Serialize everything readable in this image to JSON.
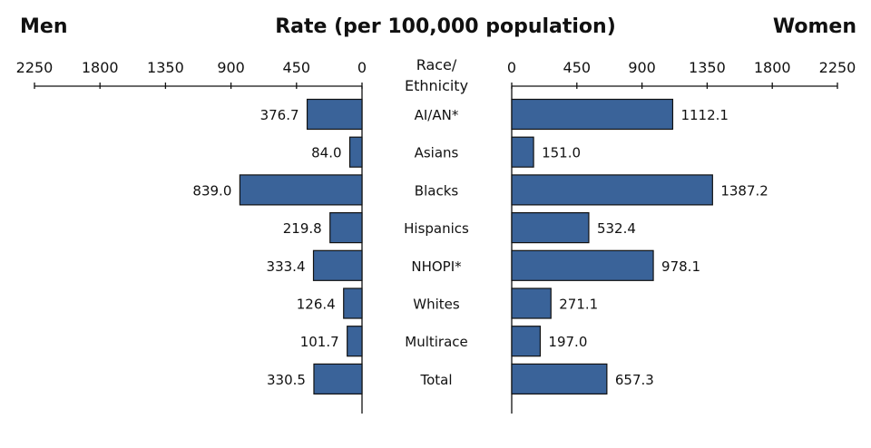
{
  "chart_data": {
    "type": "bar",
    "orientation": "horizontal-butterfly",
    "title": "Rate (per 100,000 population)",
    "left_label": "Men",
    "right_label": "Women",
    "category_header": [
      "Race/",
      "Ethnicity"
    ],
    "categories": [
      "AI/AN*",
      "Asians",
      "Blacks",
      "Hispanics",
      "NHOPI*",
      "Whites",
      "Multirace",
      "Total"
    ],
    "series": [
      {
        "name": "Men",
        "values": [
          376.7,
          84.0,
          839.0,
          219.8,
          333.4,
          126.4,
          101.7,
          330.5
        ]
      },
      {
        "name": "Women",
        "values": [
          1112.1,
          151.0,
          1387.2,
          532.4,
          978.1,
          271.1,
          197.0,
          657.3
        ]
      }
    ],
    "xlim": [
      0,
      2250
    ],
    "ticks": [
      0,
      450,
      900,
      1350,
      1800,
      2250
    ],
    "grid": false,
    "bar_color": "#3a6399",
    "bar_edge_color": "#111111"
  }
}
